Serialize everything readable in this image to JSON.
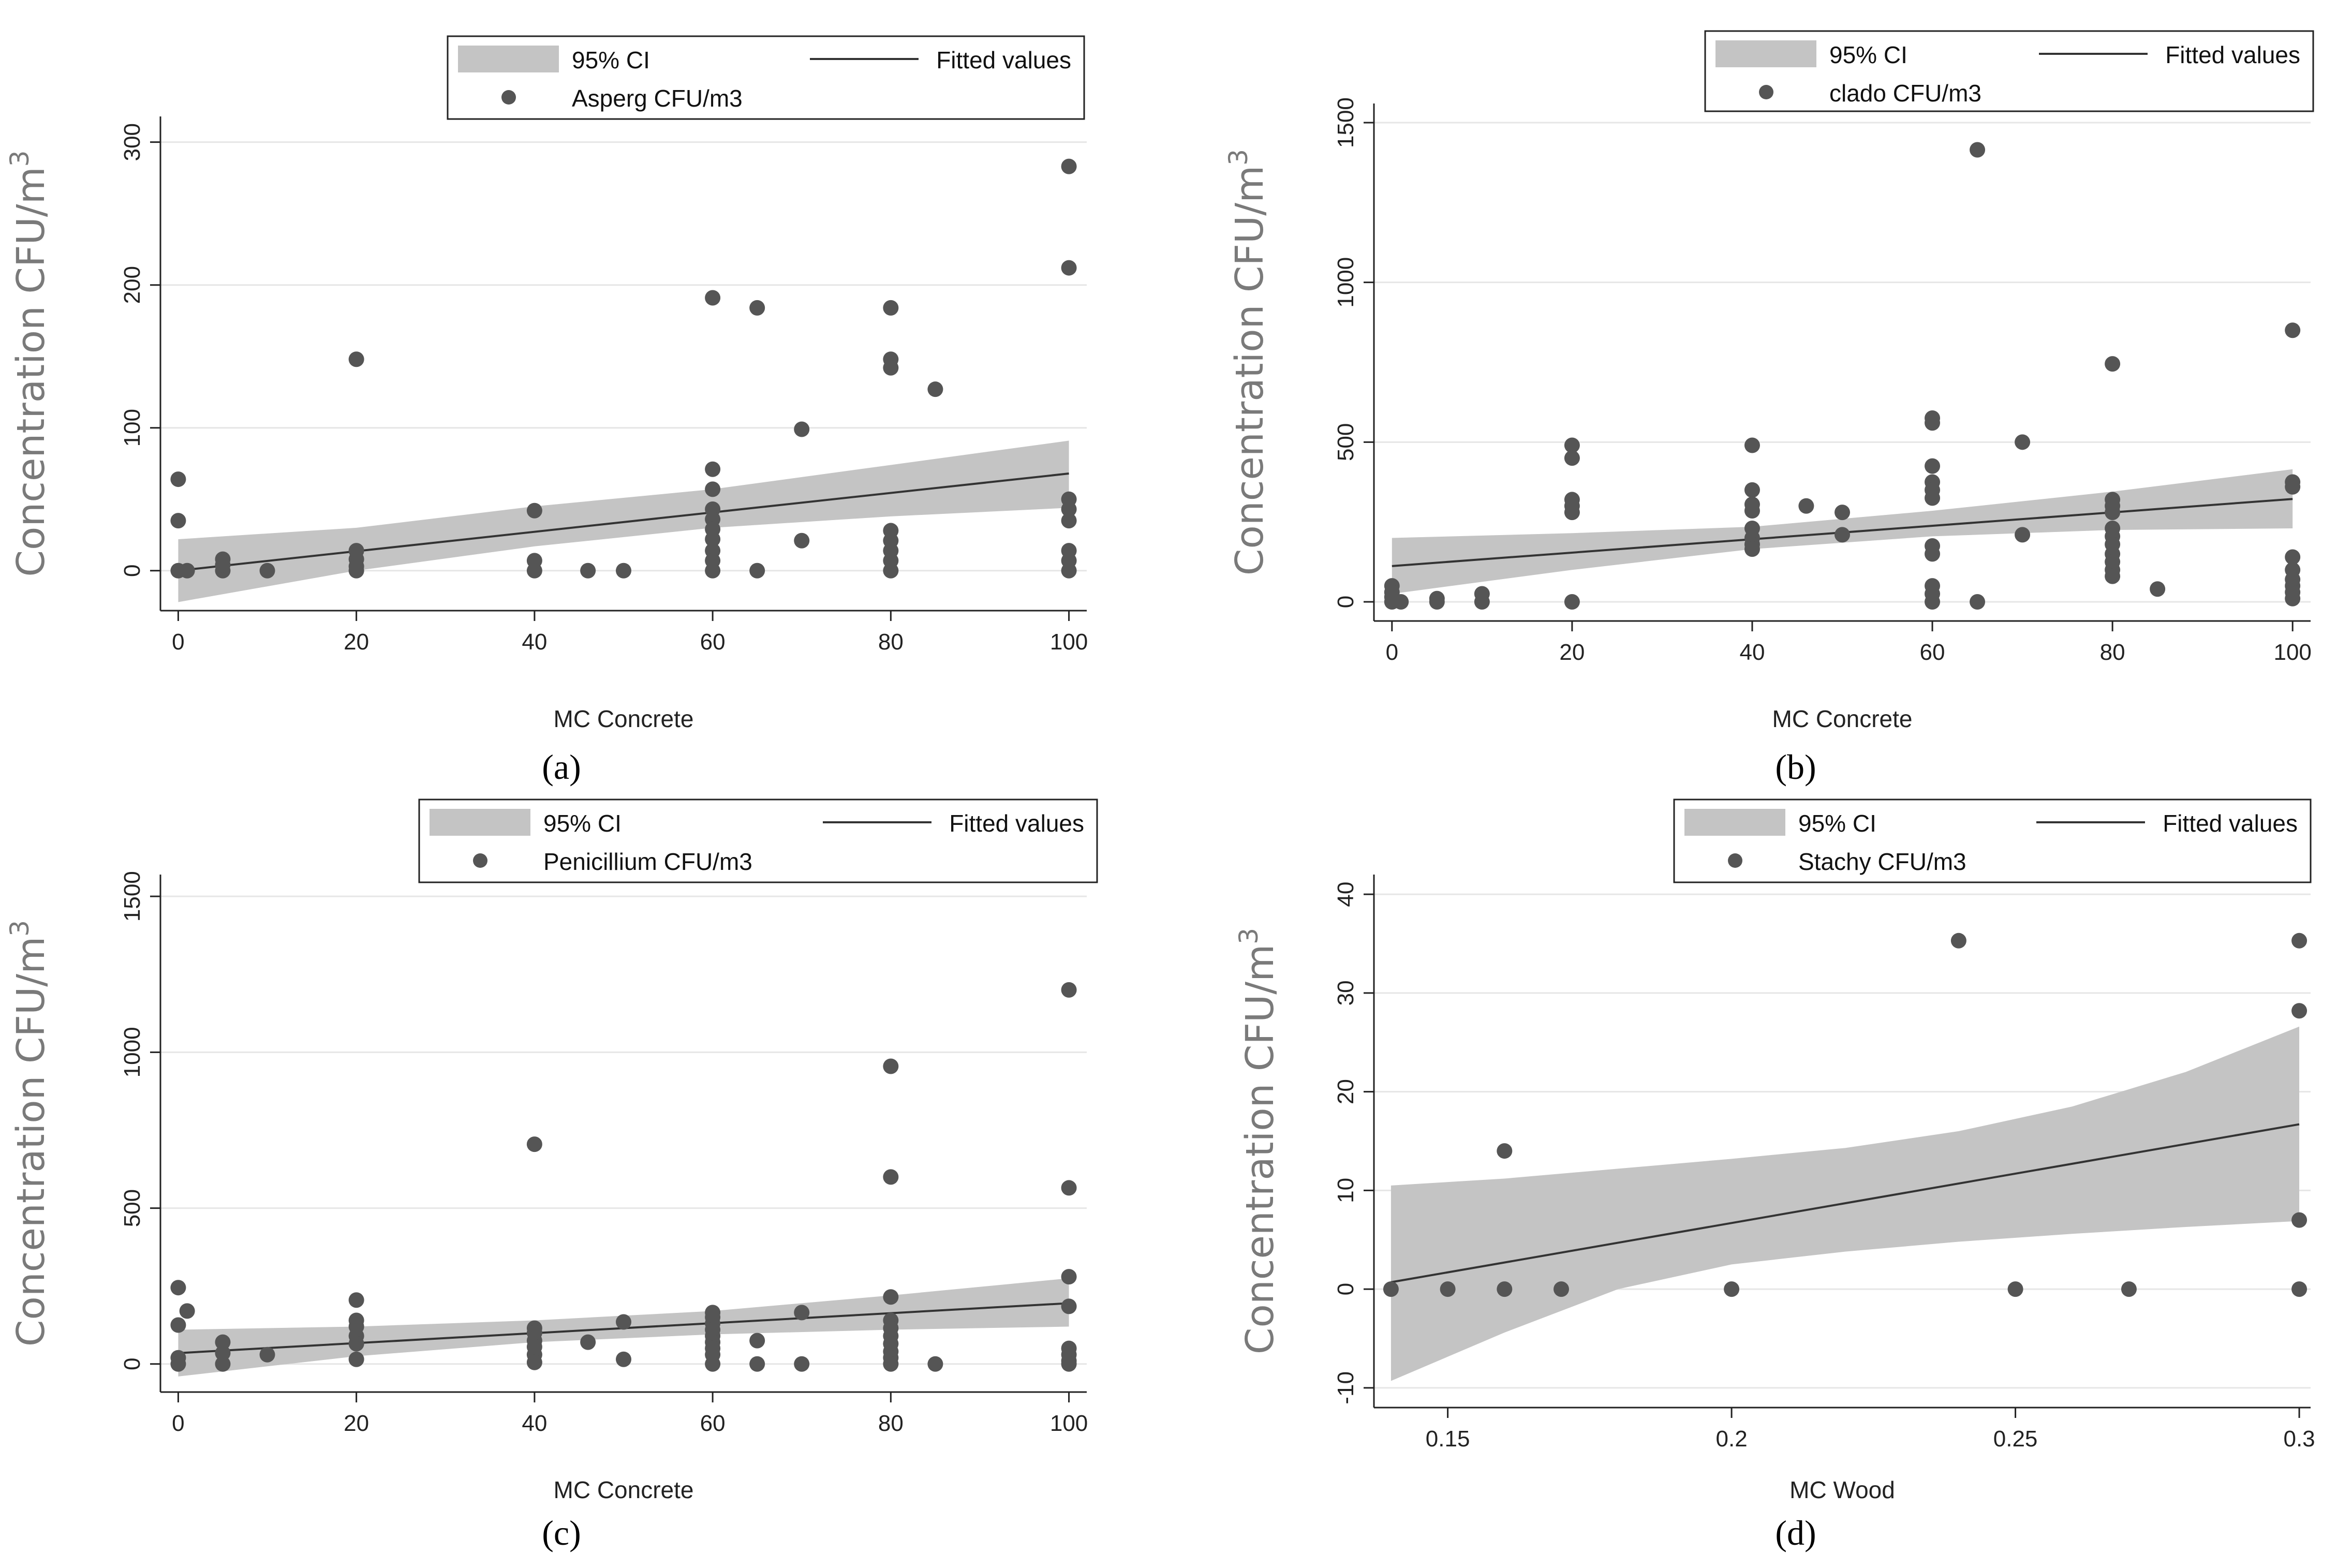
{
  "figure": {
    "captions": [
      "(a)",
      "(b)",
      "(c)",
      "(d)"
    ]
  },
  "colors": {
    "point": "#555555",
    "ci_band": "#c4c4c4",
    "fit_line": "#333333",
    "grid": "#e6e6e6",
    "axis": "#222222"
  },
  "chart_data": [
    {
      "type": "scatter",
      "caption": "(a)",
      "xlabel": "MC Concrete",
      "ylabel": "Concentration CFU/m",
      "ylabel_sup": "3",
      "xlim": [
        -2,
        102
      ],
      "ylim": [
        -28,
        318
      ],
      "xticks": [
        0,
        20,
        40,
        60,
        80,
        100
      ],
      "xtick_labels": [
        "0",
        "20",
        "40",
        "60",
        "80",
        "100"
      ],
      "yticks": [
        0,
        100,
        200,
        300
      ],
      "ytick_labels": [
        "0",
        "100",
        "200",
        "300"
      ],
      "legend": {
        "ci": "95% CI",
        "fit": "Fitted values",
        "points": "Asperg CFU/m3"
      },
      "fit": {
        "x": [
          0,
          100
        ],
        "y": [
          0,
          68
        ]
      },
      "ci_band": {
        "x": [
          0,
          20,
          40,
          60,
          80,
          100
        ],
        "lower": [
          -22,
          0,
          17,
          30,
          38,
          44
        ],
        "upper": [
          22,
          30,
          45,
          57,
          74,
          91
        ]
      },
      "points": [
        [
          0,
          64
        ],
        [
          0,
          35
        ],
        [
          0,
          0
        ],
        [
          1,
          0
        ],
        [
          5,
          0
        ],
        [
          5,
          4
        ],
        [
          5,
          8
        ],
        [
          10,
          0
        ],
        [
          20,
          148
        ],
        [
          20,
          14
        ],
        [
          20,
          8
        ],
        [
          20,
          3
        ],
        [
          20,
          0
        ],
        [
          40,
          42
        ],
        [
          40,
          7
        ],
        [
          40,
          0
        ],
        [
          46,
          0
        ],
        [
          50,
          0
        ],
        [
          60,
          191
        ],
        [
          60,
          71
        ],
        [
          60,
          57
        ],
        [
          60,
          43
        ],
        [
          60,
          36
        ],
        [
          60,
          29
        ],
        [
          60,
          22
        ],
        [
          60,
          14
        ],
        [
          60,
          7
        ],
        [
          60,
          0
        ],
        [
          65,
          184
        ],
        [
          65,
          0
        ],
        [
          70,
          99
        ],
        [
          70,
          21
        ],
        [
          80,
          184
        ],
        [
          80,
          148
        ],
        [
          80,
          142
        ],
        [
          80,
          28
        ],
        [
          80,
          21
        ],
        [
          80,
          14
        ],
        [
          80,
          7
        ],
        [
          80,
          0
        ],
        [
          85,
          127
        ],
        [
          100,
          283
        ],
        [
          100,
          212
        ],
        [
          100,
          50
        ],
        [
          100,
          43
        ],
        [
          100,
          35
        ],
        [
          100,
          14
        ],
        [
          100,
          7
        ],
        [
          100,
          0
        ]
      ]
    },
    {
      "type": "scatter",
      "caption": "(b)",
      "xlabel": "MC Concrete",
      "ylabel": "Concentration CFU/m",
      "ylabel_sup": "3",
      "xlim": [
        -2,
        102
      ],
      "ylim": [
        -60,
        1560
      ],
      "xticks": [
        0,
        20,
        40,
        60,
        80,
        100
      ],
      "xtick_labels": [
        "0",
        "20",
        "40",
        "60",
        "80",
        "100"
      ],
      "yticks": [
        0,
        500,
        1000,
        1500
      ],
      "ytick_labels": [
        "0",
        "500",
        "1000",
        "1500"
      ],
      "legend": {
        "ci": "95% CI",
        "fit": "Fitted values",
        "points": "clado CFU/m3"
      },
      "fit": {
        "x": [
          0,
          100
        ],
        "y": [
          112,
          322
        ]
      },
      "ci_band": {
        "x": [
          0,
          20,
          40,
          60,
          80,
          100
        ],
        "lower": [
          25,
          100,
          165,
          205,
          225,
          230
        ],
        "upper": [
          200,
          215,
          235,
          285,
          345,
          415
        ]
      },
      "points": [
        [
          0,
          50
        ],
        [
          0,
          30
        ],
        [
          0,
          15
        ],
        [
          0,
          0
        ],
        [
          1,
          0
        ],
        [
          5,
          10
        ],
        [
          5,
          0
        ],
        [
          10,
          25
        ],
        [
          10,
          0
        ],
        [
          20,
          490
        ],
        [
          20,
          450
        ],
        [
          20,
          320
        ],
        [
          20,
          300
        ],
        [
          20,
          280
        ],
        [
          20,
          0
        ],
        [
          40,
          490
        ],
        [
          40,
          350
        ],
        [
          40,
          305
        ],
        [
          40,
          285
        ],
        [
          40,
          230
        ],
        [
          40,
          200
        ],
        [
          40,
          180
        ],
        [
          40,
          165
        ],
        [
          46,
          300
        ],
        [
          50,
          280
        ],
        [
          50,
          210
        ],
        [
          60,
          575
        ],
        [
          60,
          560
        ],
        [
          60,
          425
        ],
        [
          60,
          375
        ],
        [
          60,
          350
        ],
        [
          60,
          325
        ],
        [
          60,
          175
        ],
        [
          60,
          150
        ],
        [
          60,
          50
        ],
        [
          60,
          25
        ],
        [
          60,
          0
        ],
        [
          65,
          1415
        ],
        [
          65,
          0
        ],
        [
          70,
          500
        ],
        [
          70,
          210
        ],
        [
          80,
          745
        ],
        [
          80,
          320
        ],
        [
          80,
          300
        ],
        [
          80,
          280
        ],
        [
          80,
          230
        ],
        [
          80,
          205
        ],
        [
          80,
          180
        ],
        [
          80,
          150
        ],
        [
          80,
          125
        ],
        [
          80,
          100
        ],
        [
          80,
          80
        ],
        [
          85,
          40
        ],
        [
          100,
          850
        ],
        [
          100,
          375
        ],
        [
          100,
          360
        ],
        [
          100,
          140
        ],
        [
          100,
          100
        ],
        [
          100,
          70
        ],
        [
          100,
          50
        ],
        [
          100,
          30
        ],
        [
          100,
          10
        ]
      ]
    },
    {
      "type": "scatter",
      "caption": "(c)",
      "xlabel": "MC Concrete",
      "ylabel": "Concentration CFU/m",
      "ylabel_sup": "3",
      "xlim": [
        -2,
        102
      ],
      "ylim": [
        -90,
        1570
      ],
      "xticks": [
        0,
        20,
        40,
        60,
        80,
        100
      ],
      "xtick_labels": [
        "0",
        "20",
        "40",
        "60",
        "80",
        "100"
      ],
      "yticks": [
        0,
        500,
        1000,
        1500
      ],
      "ytick_labels": [
        "0",
        "500",
        "1000",
        "1500"
      ],
      "legend": {
        "ci": "95% CI",
        "fit": "Fitted values",
        "points": "Penicillium CFU/m3"
      },
      "fit": {
        "x": [
          0,
          100
        ],
        "y": [
          35,
          195
        ]
      },
      "ci_band": {
        "x": [
          0,
          20,
          40,
          60,
          80,
          100
        ],
        "lower": [
          -40,
          25,
          70,
          95,
          110,
          120
        ],
        "upper": [
          110,
          120,
          140,
          170,
          220,
          275
        ]
      },
      "points": [
        [
          0,
          245
        ],
        [
          0,
          125
        ],
        [
          0,
          20
        ],
        [
          0,
          0
        ],
        [
          1,
          170
        ],
        [
          5,
          70
        ],
        [
          5,
          35
        ],
        [
          5,
          0
        ],
        [
          10,
          30
        ],
        [
          20,
          205
        ],
        [
          20,
          140
        ],
        [
          20,
          120
        ],
        [
          20,
          90
        ],
        [
          20,
          65
        ],
        [
          20,
          15
        ],
        [
          40,
          705
        ],
        [
          40,
          115
        ],
        [
          40,
          100
        ],
        [
          40,
          75
        ],
        [
          40,
          55
        ],
        [
          40,
          30
        ],
        [
          40,
          5
        ],
        [
          46,
          70
        ],
        [
          50,
          135
        ],
        [
          50,
          15
        ],
        [
          60,
          165
        ],
        [
          60,
          150
        ],
        [
          60,
          130
        ],
        [
          60,
          110
        ],
        [
          60,
          90
        ],
        [
          60,
          70
        ],
        [
          60,
          50
        ],
        [
          60,
          30
        ],
        [
          60,
          0
        ],
        [
          65,
          75
        ],
        [
          65,
          0
        ],
        [
          70,
          165
        ],
        [
          70,
          0
        ],
        [
          80,
          955
        ],
        [
          80,
          600
        ],
        [
          80,
          215
        ],
        [
          80,
          140
        ],
        [
          80,
          115
        ],
        [
          80,
          90
        ],
        [
          80,
          65
        ],
        [
          80,
          40
        ],
        [
          80,
          20
        ],
        [
          80,
          0
        ],
        [
          85,
          0
        ],
        [
          100,
          1200
        ],
        [
          100,
          565
        ],
        [
          100,
          280
        ],
        [
          100,
          185
        ],
        [
          100,
          50
        ],
        [
          100,
          30
        ],
        [
          100,
          10
        ],
        [
          100,
          0
        ]
      ]
    },
    {
      "type": "scatter",
      "caption": "(d)",
      "xlabel": "MC Wood",
      "ylabel": "Concentration CFU/m",
      "ylabel_sup": "3",
      "xlim": [
        0.137,
        0.302
      ],
      "ylim": [
        -12,
        42
      ],
      "xticks": [
        0.15,
        0.2,
        0.25,
        0.3
      ],
      "xtick_labels": [
        "0.15",
        "0.2",
        "0.25",
        "0.3"
      ],
      "yticks": [
        -10,
        0,
        10,
        20,
        30,
        40
      ],
      "ytick_labels": [
        "-10",
        "0",
        "10",
        "20",
        "30",
        "40"
      ],
      "legend": {
        "ci": "95% CI",
        "fit": "Fitted values",
        "points": "Stachy CFU/m3"
      },
      "fit": {
        "x": [
          0.14,
          0.3
        ],
        "y": [
          0.7,
          16.7
        ]
      },
      "ci_band": {
        "x": [
          0.14,
          0.16,
          0.18,
          0.2,
          0.22,
          0.24,
          0.26,
          0.28,
          0.3
        ],
        "lower": [
          -9.3,
          -4.4,
          0.0,
          2.5,
          3.8,
          4.8,
          5.6,
          6.3,
          6.9
        ],
        "upper": [
          10.5,
          11.2,
          12.2,
          13.2,
          14.3,
          16.0,
          18.5,
          22.0,
          26.6
        ]
      },
      "points": [
        [
          0.14,
          0
        ],
        [
          0.15,
          0
        ],
        [
          0.16,
          14
        ],
        [
          0.16,
          0
        ],
        [
          0.17,
          0
        ],
        [
          0.2,
          0
        ],
        [
          0.24,
          35.3
        ],
        [
          0.25,
          0
        ],
        [
          0.27,
          0
        ],
        [
          0.3,
          35.3
        ],
        [
          0.3,
          28.2
        ],
        [
          0.3,
          7
        ],
        [
          0.3,
          0
        ]
      ]
    }
  ]
}
